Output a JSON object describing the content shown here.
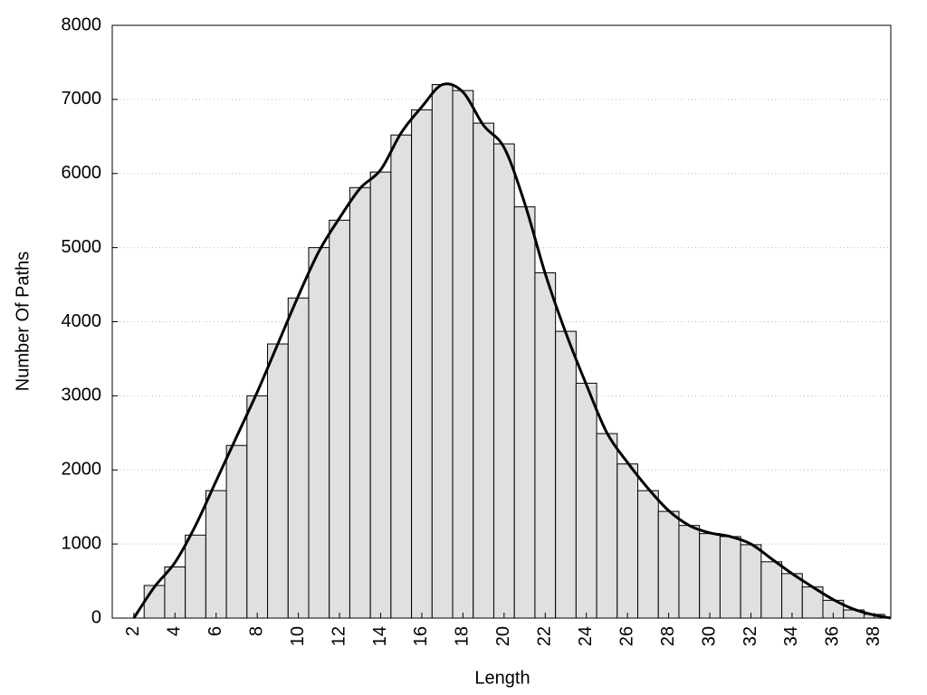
{
  "chart_data": {
    "type": "histogram",
    "xlabel": "Length",
    "ylabel": "Number Of Paths",
    "bins": [
      2.5,
      3.5,
      4.5,
      5.5,
      6.5,
      7.5,
      8.5,
      9.5,
      10.5,
      11.5,
      12.5,
      13.5,
      14.5,
      15.5,
      16.5,
      17.5,
      18.5,
      19.5,
      20.5,
      21.5,
      22.5,
      23.5,
      24.5,
      25.5,
      26.5,
      27.5,
      28.5,
      29.5,
      30.5,
      31.5,
      32.5,
      33.5,
      34.5,
      35.5,
      36.5,
      37.5,
      38.5
    ],
    "counts": [
      440,
      690,
      1120,
      1720,
      2330,
      3000,
      3700,
      4320,
      5000,
      5370,
      5810,
      6020,
      6520,
      6860,
      7200,
      7120,
      6680,
      6400,
      5550,
      4660,
      3870,
      3170,
      2490,
      2080,
      1720,
      1440,
      1250,
      1140,
      1100,
      990,
      760,
      600,
      420,
      240,
      110,
      50
    ],
    "color": "#e0e0e0",
    "line": {
      "color": "#000000",
      "x": [
        2,
        3,
        4,
        5,
        6,
        7,
        8,
        9,
        10,
        11,
        12,
        13,
        14,
        15,
        16,
        17,
        18,
        19,
        20,
        21,
        22,
        23,
        24,
        25,
        26,
        27,
        28,
        29,
        30,
        31,
        32,
        33,
        34,
        35,
        36,
        37,
        38,
        38.8
      ],
      "values": [
        0,
        420,
        750,
        1250,
        1850,
        2450,
        3050,
        3700,
        4350,
        4950,
        5400,
        5800,
        6050,
        6550,
        6900,
        7200,
        7100,
        6650,
        6350,
        5600,
        4650,
        3850,
        3150,
        2500,
        2100,
        1750,
        1450,
        1250,
        1150,
        1100,
        1000,
        800,
        600,
        420,
        250,
        120,
        40,
        0
      ]
    },
    "xlim": [
      0.95,
      38.8
    ],
    "ylim": [
      0,
      8000
    ],
    "xticks": [
      2,
      4,
      6,
      8,
      10,
      12,
      14,
      16,
      18,
      20,
      22,
      24,
      26,
      28,
      30,
      32,
      34,
      36,
      38
    ],
    "yticks": [
      0,
      1000,
      2000,
      3000,
      4000,
      5000,
      6000,
      7000,
      8000
    ],
    "grid": true
  }
}
